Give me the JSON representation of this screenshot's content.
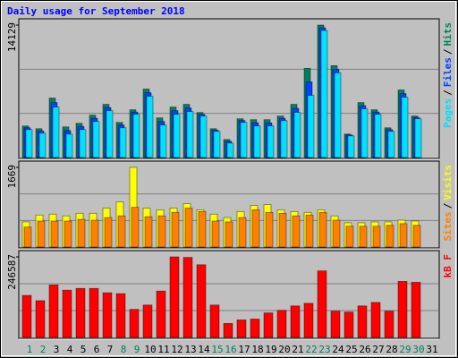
{
  "chart_data": [
    {
      "type": "bar",
      "title": "Daily usage for September 2018",
      "ylim": [
        0,
        14129
      ],
      "yticks": [
        14129
      ],
      "legend_separator": "/",
      "series": [
        {
          "name": "Hits",
          "color": "#00805c",
          "values": [
            3364,
            3075,
            6343,
            3268,
            3652,
            4517,
            5670,
            3748,
            5094,
            7304,
            4229,
            5382,
            5670,
            4805,
            3075,
            1922,
            4133,
            4037,
            4037,
            4421,
            5670,
            9515,
            14129,
            9803,
            2499,
            5863,
            5094,
            3172,
            7208,
            4421,
            null
          ]
        },
        {
          "name": "Files",
          "color": "#0040ff",
          "values": [
            3172,
            2835,
            5862,
            2883,
            3315,
            4180,
            5334,
            3460,
            4853,
            6919,
            3844,
            4997,
            5285,
            4613,
            2931,
            1730,
            3940,
            3700,
            3700,
            4180,
            5237,
            8073,
            13840,
            9418,
            2403,
            5526,
            4853,
            2979,
            6823,
            4277,
            null
          ]
        },
        {
          "name": "Pages",
          "color": "#00e0ff",
          "values": [
            2979,
            2595,
            5382,
            2499,
            2979,
            3844,
            4998,
            3172,
            4613,
            6535,
            3460,
            4613,
            4901,
            4421,
            2787,
            1538,
            3748,
            3364,
            3364,
            3940,
            4805,
            6631,
            13551,
            9034,
            2307,
            5190,
            4613,
            2787,
            6439,
            4133,
            null
          ]
        }
      ]
    },
    {
      "type": "bar",
      "ylim": [
        0,
        1669
      ],
      "yticks": [
        1669
      ],
      "legend_separator": "/",
      "series": [
        {
          "name": "Visits",
          "color": "#ffff00",
          "values": [
            526,
            671,
            689,
            653,
            707,
            707,
            816,
            943,
            1669,
            816,
            780,
            816,
            907,
            780,
            689,
            617,
            744,
            871,
            889,
            780,
            744,
            726,
            780,
            653,
            508,
            508,
            526,
            526,
            562,
            544,
            null
          ]
        },
        {
          "name": "Sites",
          "color": "#ff8000",
          "values": [
            417,
            544,
            544,
            544,
            580,
            562,
            617,
            653,
            834,
            635,
            653,
            726,
            816,
            744,
            544,
            526,
            617,
            780,
            726,
            707,
            653,
            671,
            726,
            562,
            435,
            435,
            435,
            454,
            490,
            454,
            null
          ]
        }
      ]
    },
    {
      "type": "bar",
      "ylim": [
        0,
        246587
      ],
      "yticks": [
        246587
      ],
      "categories": [
        "1",
        "2",
        "3",
        "4",
        "5",
        "6",
        "7",
        "8",
        "9",
        "10",
        "11",
        "12",
        "13",
        "14",
        "15",
        "16",
        "17",
        "18",
        "19",
        "20",
        "21",
        "22",
        "23",
        "24",
        "25",
        "26",
        "27",
        "28",
        "29",
        "30",
        "31"
      ],
      "category_colors": [
        "#00805c",
        "#00805c",
        "#000000",
        "#000000",
        "#000000",
        "#000000",
        "#000000",
        "#00805c",
        "#00805c",
        "#000000",
        "#000000",
        "#000000",
        "#000000",
        "#000000",
        "#00805c",
        "#00805c",
        "#000000",
        "#000000",
        "#000000",
        "#000000",
        "#000000",
        "#00805c",
        "#00805c",
        "#000000",
        "#000000",
        "#000000",
        "#000000",
        "#000000",
        "#00805c",
        "#00805c",
        "#000000"
      ],
      "series": [
        {
          "name": "kB F",
          "color": "#ff0000",
          "values": [
            128640,
            112560,
            160800,
            144720,
            150080,
            150080,
            136680,
            134000,
            85760,
            99160,
            142040,
            246587,
            245000,
            222440,
            99160,
            42880,
            53600,
            56280,
            75040,
            83080,
            96480,
            104520,
            203680,
            80400,
            77720,
            96480,
            107200,
            80400,
            171520,
            168840,
            null
          ]
        }
      ]
    }
  ]
}
